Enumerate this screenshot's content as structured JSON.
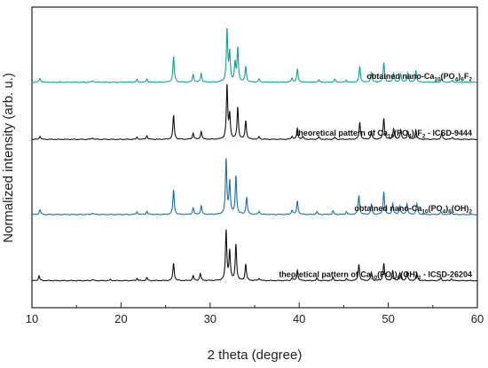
{
  "chart_data": {
    "type": "line",
    "xlabel": "2 theta (degree)",
    "ylabel": "Normalized intensity (arb. u.)",
    "xlim": [
      10,
      60
    ],
    "xticks": [
      "10",
      "20",
      "30",
      "40",
      "50",
      "60"
    ],
    "y_ticks_shown": false,
    "grid": false,
    "series": [
      {
        "label_parts": [
          [
            "obtained nano-Ca",
            false
          ],
          [
            "10",
            true
          ],
          [
            "(PO",
            false
          ],
          [
            "4",
            true
          ],
          [
            ")",
            false
          ],
          [
            "6",
            true
          ],
          [
            "F",
            false
          ],
          [
            "2",
            true
          ]
        ],
        "color": "#1a9e8c",
        "stack_order": 4,
        "offset": 0.75,
        "scale": 0.78,
        "peaks": [
          [
            10.9,
            0.08
          ],
          [
            16.8,
            0.03
          ],
          [
            21.8,
            0.05
          ],
          [
            22.9,
            0.06
          ],
          [
            25.9,
            0.5
          ],
          [
            28.1,
            0.15
          ],
          [
            29.0,
            0.17
          ],
          [
            31.9,
            1.0
          ],
          [
            32.2,
            0.55
          ],
          [
            32.8,
            0.35
          ],
          [
            33.1,
            0.65
          ],
          [
            34.0,
            0.3
          ],
          [
            35.5,
            0.06
          ],
          [
            39.2,
            0.08
          ],
          [
            39.8,
            0.25
          ],
          [
            42.2,
            0.05
          ],
          [
            44.0,
            0.06
          ],
          [
            45.3,
            0.04
          ],
          [
            46.8,
            0.3
          ],
          [
            48.1,
            0.18
          ],
          [
            49.5,
            0.38
          ],
          [
            50.6,
            0.18
          ],
          [
            51.4,
            0.16
          ],
          [
            52.2,
            0.18
          ],
          [
            53.1,
            0.22
          ],
          [
            56.0,
            0.06
          ],
          [
            57.2,
            0.04
          ]
        ]
      },
      {
        "label_parts": [
          [
            "theoretical pattern of Ca",
            false
          ],
          [
            "10",
            true
          ],
          [
            "(PO",
            false
          ],
          [
            "4",
            true
          ],
          [
            ")",
            false
          ],
          [
            "6",
            true
          ],
          [
            "F",
            false
          ],
          [
            "2",
            true
          ],
          [
            " - ICSD-9444",
            false
          ]
        ],
        "color": "#111111",
        "stack_order": 3,
        "offset": 0.56,
        "scale": 0.8,
        "peaks": [
          [
            10.9,
            0.06
          ],
          [
            16.8,
            0.03
          ],
          [
            21.8,
            0.04
          ],
          [
            22.9,
            0.07
          ],
          [
            25.9,
            0.45
          ],
          [
            28.1,
            0.12
          ],
          [
            29.0,
            0.15
          ],
          [
            31.9,
            1.0
          ],
          [
            32.2,
            0.45
          ],
          [
            33.1,
            0.6
          ],
          [
            34.0,
            0.35
          ],
          [
            35.5,
            0.05
          ],
          [
            39.2,
            0.06
          ],
          [
            39.8,
            0.2
          ],
          [
            40.4,
            0.05
          ],
          [
            42.2,
            0.05
          ],
          [
            44.0,
            0.04
          ],
          [
            46.8,
            0.32
          ],
          [
            48.1,
            0.15
          ],
          [
            49.5,
            0.4
          ],
          [
            50.6,
            0.2
          ],
          [
            51.4,
            0.18
          ],
          [
            52.2,
            0.15
          ],
          [
            53.1,
            0.18
          ],
          [
            56.0,
            0.12
          ],
          [
            57.2,
            0.04
          ]
        ]
      },
      {
        "label_parts": [
          [
            "obtained nano-Ca",
            false
          ],
          [
            "10",
            true
          ],
          [
            "(PO",
            false
          ],
          [
            "4",
            true
          ],
          [
            ")",
            false
          ],
          [
            "6",
            true
          ],
          [
            "(OH)",
            false
          ],
          [
            "2",
            true
          ]
        ],
        "color": "#1d6fa0",
        "stack_order": 2,
        "offset": 0.31,
        "scale": 0.82,
        "peaks": [
          [
            10.9,
            0.09
          ],
          [
            16.8,
            0.03
          ],
          [
            21.8,
            0.05
          ],
          [
            22.9,
            0.06
          ],
          [
            25.9,
            0.45
          ],
          [
            28.1,
            0.12
          ],
          [
            29.0,
            0.16
          ],
          [
            31.8,
            1.0
          ],
          [
            32.2,
            0.6
          ],
          [
            32.9,
            0.7
          ],
          [
            34.1,
            0.32
          ],
          [
            35.5,
            0.06
          ],
          [
            39.2,
            0.08
          ],
          [
            39.8,
            0.25
          ],
          [
            42.0,
            0.05
          ],
          [
            43.8,
            0.06
          ],
          [
            45.3,
            0.05
          ],
          [
            46.7,
            0.35
          ],
          [
            48.1,
            0.18
          ],
          [
            49.5,
            0.42
          ],
          [
            50.5,
            0.2
          ],
          [
            51.3,
            0.16
          ],
          [
            52.1,
            0.2
          ],
          [
            53.2,
            0.2
          ],
          [
            55.9,
            0.05
          ],
          [
            57.1,
            0.04
          ]
        ]
      },
      {
        "label_parts": [
          [
            "theoretical pattern of Ca",
            false
          ],
          [
            "10",
            true
          ],
          [
            "(PO",
            false
          ],
          [
            "4",
            true
          ],
          [
            ")",
            false
          ],
          [
            "6",
            true
          ],
          [
            "(OH)",
            false
          ],
          [
            "2",
            true
          ],
          [
            " - ICSD-26204",
            false
          ]
        ],
        "color": "#111111",
        "stack_order": 1,
        "offset": 0.09,
        "scale": 0.88,
        "peaks": [
          [
            10.8,
            0.08
          ],
          [
            16.8,
            0.02
          ],
          [
            18.8,
            0.02
          ],
          [
            21.8,
            0.04
          ],
          [
            22.9,
            0.05
          ],
          [
            25.9,
            0.3
          ],
          [
            28.1,
            0.08
          ],
          [
            28.9,
            0.12
          ],
          [
            31.8,
            0.85
          ],
          [
            32.2,
            0.5
          ],
          [
            32.9,
            0.62
          ],
          [
            34.0,
            0.28
          ],
          [
            35.5,
            0.04
          ],
          [
            39.2,
            0.05
          ],
          [
            39.8,
            0.18
          ],
          [
            42.0,
            0.04
          ],
          [
            43.8,
            0.05
          ],
          [
            45.3,
            0.03
          ],
          [
            46.7,
            0.28
          ],
          [
            48.1,
            0.14
          ],
          [
            49.5,
            0.3
          ],
          [
            50.5,
            0.16
          ],
          [
            51.3,
            0.13
          ],
          [
            52.1,
            0.14
          ],
          [
            53.2,
            0.13
          ],
          [
            55.9,
            0.05
          ],
          [
            57.1,
            0.03
          ]
        ]
      }
    ]
  }
}
